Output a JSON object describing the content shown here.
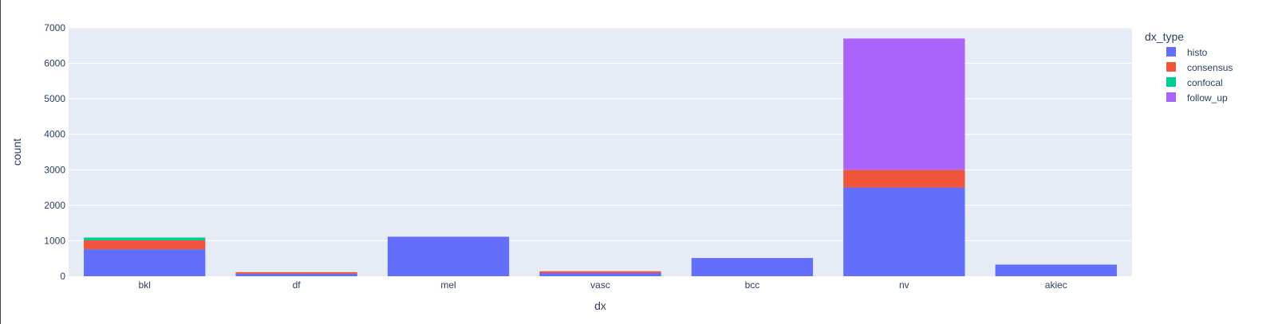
{
  "chart_data": {
    "type": "bar",
    "barmode": "stack",
    "xlabel": "dx",
    "ylabel": "count",
    "ylim": [
      0,
      7000
    ],
    "yticks": [
      0,
      1000,
      2000,
      3000,
      4000,
      5000,
      6000,
      7000
    ],
    "categories": [
      "bkl",
      "df",
      "mel",
      "vasc",
      "bcc",
      "nv",
      "akiec"
    ],
    "legend_title": "dx_type",
    "legend_position": "right",
    "grid": true,
    "series": [
      {
        "name": "histo",
        "color": "#636efa",
        "values": [
          760,
          70,
          1113,
          90,
          514,
          2500,
          327
        ]
      },
      {
        "name": "consensus",
        "color": "#ef553b",
        "values": [
          250,
          45,
          0,
          50,
          0,
          500,
          0
        ]
      },
      {
        "name": "confocal",
        "color": "#00cc96",
        "values": [
          80,
          0,
          0,
          0,
          0,
          0,
          0
        ]
      },
      {
        "name": "follow_up",
        "color": "#ab63fa",
        "values": [
          0,
          0,
          0,
          0,
          0,
          3700,
          0
        ]
      }
    ],
    "plot_bg": "#e5ecf6",
    "grid_color": "#ffffff"
  }
}
